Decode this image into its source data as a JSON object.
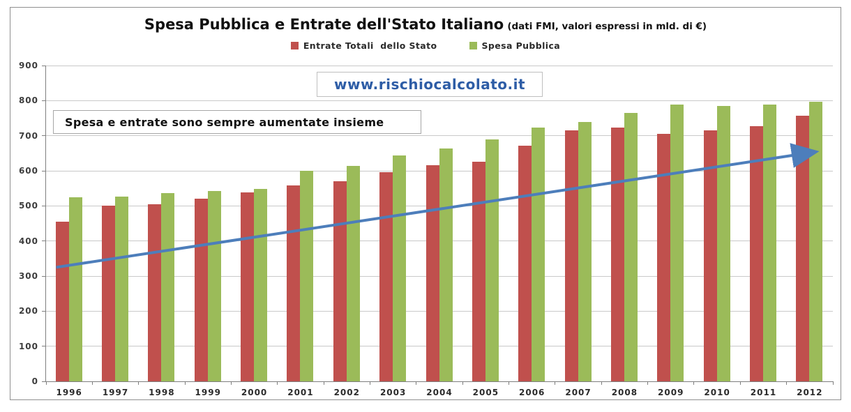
{
  "chart_data": {
    "type": "bar",
    "title": "Spesa Pubblica e Entrate dell'Stato Italiano",
    "subtitle": "(dati FMI, valori espressi in mld. di €)",
    "categories": [
      "1996",
      "1997",
      "1998",
      "1999",
      "2000",
      "2001",
      "2002",
      "2003",
      "2004",
      "2005",
      "2006",
      "2007",
      "2008",
      "2009",
      "2010",
      "2011",
      "2012"
    ],
    "series": [
      {
        "name": "Entrate Totali  dello Stato",
        "color": "#C0504D",
        "values": [
          455,
          500,
          505,
          520,
          538,
          558,
          571,
          597,
          615,
          625,
          672,
          715,
          724,
          706,
          715,
          728,
          756
        ]
      },
      {
        "name": "Spesa Pubblica",
        "color": "#9BBB59",
        "values": [
          525,
          527,
          537,
          542,
          549,
          600,
          614,
          644,
          664,
          689,
          723,
          740,
          765,
          789,
          785,
          789,
          797
        ]
      }
    ],
    "xlabel": "",
    "ylabel": "",
    "ylim": [
      0,
      900
    ],
    "ytick_step": 100,
    "grid": true,
    "legend_position": "top",
    "annotations": {
      "watermark": "www.rischiocalcolato.it",
      "note": "Spesa e entrate sono sempre aumentate insieme",
      "trend_arrow": {
        "start_year": "1996",
        "start_value": 325,
        "end_year": "2012",
        "end_value": 655,
        "color": "#4d7ebb"
      }
    },
    "colors": {
      "grid": "#c9c9c9",
      "axis": "#7f7f7f",
      "tick_labels": "#3d3d3d",
      "frame_border": "#8f8f8f",
      "watermark_text": "#2e5da6"
    }
  }
}
